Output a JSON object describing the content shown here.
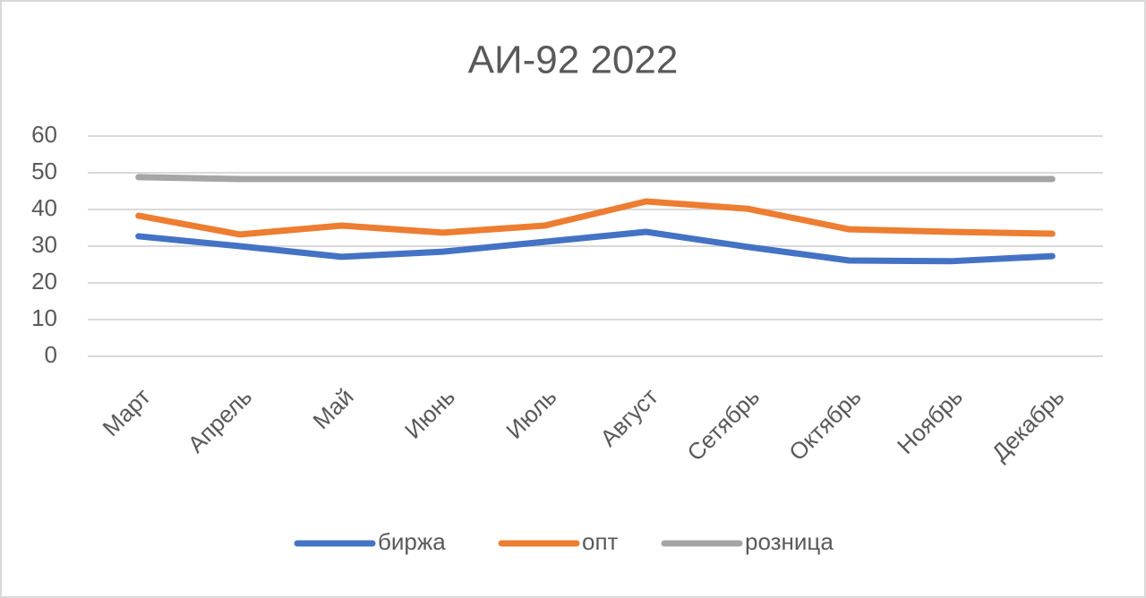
{
  "chart_data": {
    "type": "line",
    "title": "АИ-92 2022",
    "categories": [
      "Март",
      "Апрель",
      "Май",
      "Июнь",
      "Июль",
      "Август",
      "Сетябрь",
      "Октябрь",
      "Ноябрь",
      "Декабрь"
    ],
    "series": [
      {
        "name": "биржа",
        "color": "#4472c4",
        "values": [
          32.7,
          30.0,
          27.1,
          28.5,
          31.2,
          33.9,
          29.8,
          26.1,
          25.9,
          27.3
        ]
      },
      {
        "name": "опт",
        "color": "#ed7d31",
        "values": [
          38.3,
          33.2,
          35.6,
          33.7,
          35.6,
          42.2,
          40.2,
          34.6,
          33.9,
          33.4
        ]
      },
      {
        "name": "розница",
        "color": "#a5a5a5",
        "values": [
          48.8,
          48.3,
          48.3,
          48.3,
          48.3,
          48.3,
          48.3,
          48.3,
          48.3,
          48.3
        ]
      }
    ],
    "ylim": [
      0,
      60
    ],
    "yticks": [
      0,
      10,
      20,
      30,
      40,
      50,
      60
    ],
    "grid": true,
    "legend": "bottom"
  }
}
